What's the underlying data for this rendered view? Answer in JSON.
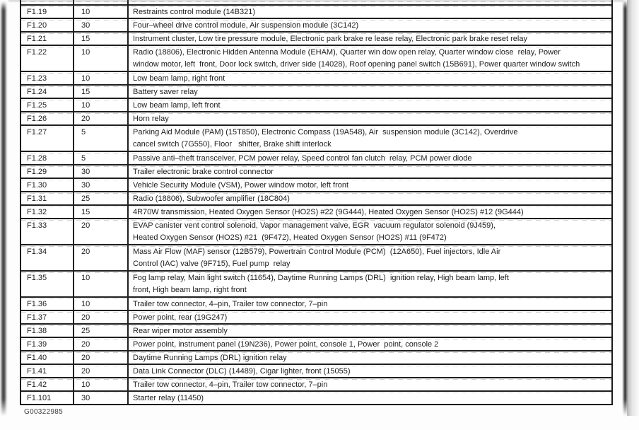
{
  "document": {
    "figure_code": "G00322985",
    "fuse_table": {
      "rows": [
        {
          "fuse": "F1.19",
          "amps": "10",
          "lines": 1,
          "description": "Restraints control module (14B321)"
        },
        {
          "fuse": "F1.20",
          "amps": "30",
          "lines": 1,
          "description": "Four–wheel drive control module, Air suspension module (3C142)"
        },
        {
          "fuse": "F1.21",
          "amps": "15",
          "lines": 1,
          "description": "Instrument cluster, Low tire pressure module, Electronic park brake re lease relay, Electronic park brake reset relay"
        },
        {
          "fuse": "F1.22",
          "amps": "10",
          "lines": 2,
          "description": "Radio (18806), Electronic Hidden Antenna Module (EHAM), Quarter win dow open relay, Quarter window close  relay, Power\nwindow motor, left  front, Door lock switch, driver side (14028), Roof opening panel switch (15B691), Power quarter window switch"
        },
        {
          "fuse": "F1.23",
          "amps": "10",
          "lines": 1,
          "description": "Low beam lamp, right front"
        },
        {
          "fuse": "F1.24",
          "amps": "15",
          "lines": 1,
          "description": "Battery saver relay"
        },
        {
          "fuse": "F1.25",
          "amps": "10",
          "lines": 1,
          "description": "Low beam lamp, left front"
        },
        {
          "fuse": "F1.26",
          "amps": "20",
          "lines": 1,
          "description": "Horn relay"
        },
        {
          "fuse": "F1.27",
          "amps": "5",
          "lines": 2,
          "description": "Parking Aid Module (PAM) (15T850), Electronic Compass (19A548), Air  suspension module (3C142), Overdrive\ncancel switch (7G550), Floor   shifter, Brake shift interlock"
        },
        {
          "fuse": "F1.28",
          "amps": "5",
          "lines": 1,
          "description": "Passive anti–theft transceiver, PCM power relay, Speed control fan clutch  relay, PCM power diode"
        },
        {
          "fuse": "F1.29",
          "amps": "30",
          "lines": 1,
          "description": "Trailer electronic brake control connector"
        },
        {
          "fuse": "F1.30",
          "amps": "30",
          "lines": 1,
          "description": "Vehicle Security Module (VSM), Power window motor, left front"
        },
        {
          "fuse": "F1.31",
          "amps": "25",
          "lines": 1,
          "description": "Radio (18806), Subwoofer amplifier (18C804)"
        },
        {
          "fuse": "F1.32",
          "amps": "15",
          "lines": 1,
          "description": "4R70W transmission, Heated Oxygen Sensor (HO2S) #22 (9G444), Heated Oxygen Sensor (HO2S) #12 (9G444)"
        },
        {
          "fuse": "F1.33",
          "amps": "20",
          "lines": 2,
          "description": "EVAP canister vent control solenoid, Vapor management valve, EGR  vacuum regulator solenoid (9J459),\nHeated Oxygen Sensor (HO2S) #21  (9F472), Heated Oxygen Sensor (HO2S) #11 (9F472)"
        },
        {
          "fuse": "F1.34",
          "amps": "20",
          "lines": 2,
          "description": "Mass Air Flow (MAF) sensor (12B579), Powertrain Control Module (PCM)  (12A650), Fuel injectors, Idle Air\nControl (IAC) valve (9F715), Fuel pump  relay"
        },
        {
          "fuse": "F1.35",
          "amps": "10",
          "lines": 2,
          "description": "Fog lamp relay, Main light switch (11654), Daytime Running Lamps (DRL)  ignition relay, High beam lamp, left\nfront, High beam lamp, right front"
        },
        {
          "fuse": "F1.36",
          "amps": "10",
          "lines": 1,
          "description": "Trailer tow connector, 4–pin, Trailer tow connector, 7–pin"
        },
        {
          "fuse": "F1.37",
          "amps": "20",
          "lines": 1,
          "description": "Power point, rear (19G247)"
        },
        {
          "fuse": "F1.38",
          "amps": "25",
          "lines": 1,
          "description": "Rear wiper motor assembly"
        },
        {
          "fuse": "F1.39",
          "amps": "20",
          "lines": 1,
          "description": "Power point, instrument panel (19N236), Power point, console 1, Power  point, console 2"
        },
        {
          "fuse": "F1.40",
          "amps": "20",
          "lines": 1,
          "description": "Daytime Running Lamps (DRL) ignition relay"
        },
        {
          "fuse": "F1.41",
          "amps": "20",
          "lines": 1,
          "description": "Data Link Connector (DLC) (14489), Cigar lighter, front (15055)"
        },
        {
          "fuse": "F1.42",
          "amps": "10",
          "lines": 1,
          "description": "Trailer tow connector, 4–pin, Trailer tow connector, 7–pin"
        },
        {
          "fuse": "F1.101",
          "amps": "30",
          "lines": 1,
          "description": "Starter relay (11450)"
        }
      ]
    }
  }
}
